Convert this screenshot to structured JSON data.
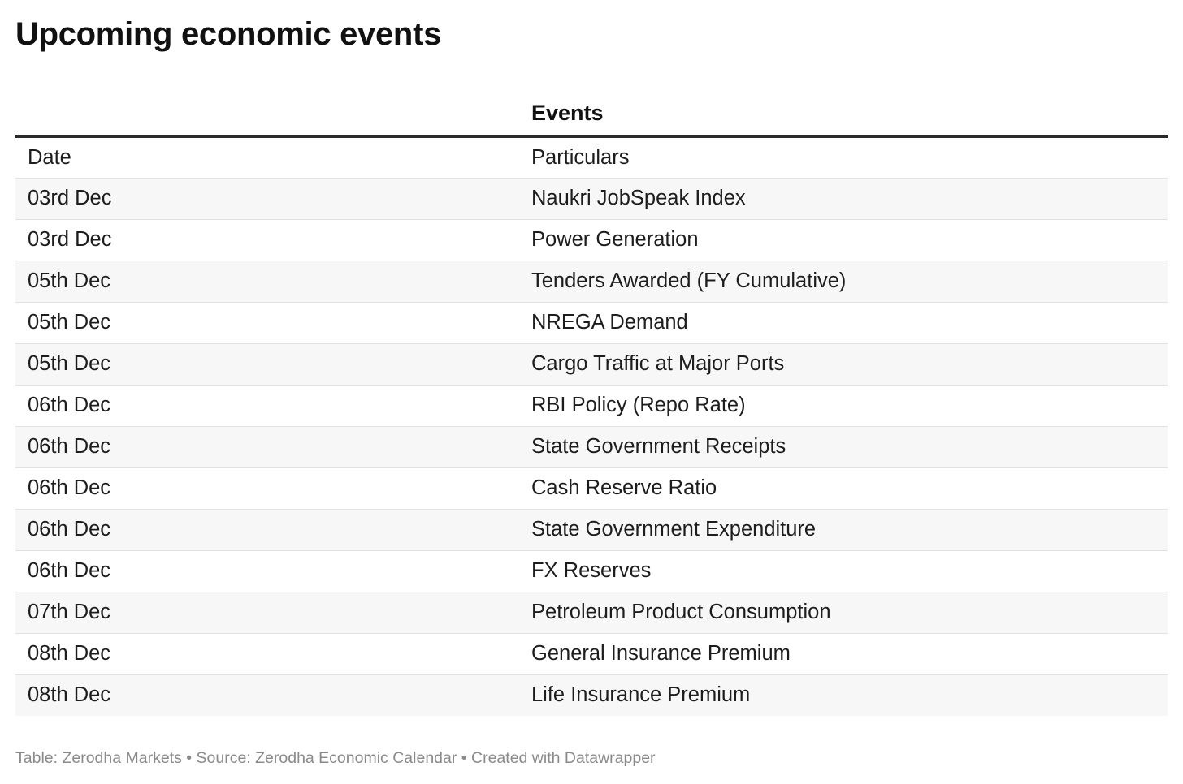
{
  "title": "Upcoming economic events",
  "footer": "Table: Zerodha Markets • Source: Zerodha Economic Calendar • Created with Datawrapper",
  "chart_data": {
    "type": "table",
    "title": "Upcoming economic events",
    "group_header": "Events",
    "columns": [
      "Date",
      "Particulars"
    ],
    "rows": [
      [
        "03rd Dec",
        "Naukri JobSpeak Index"
      ],
      [
        "03rd Dec",
        "Power Generation"
      ],
      [
        "05th Dec",
        "Tenders Awarded (FY Cumulative)"
      ],
      [
        "05th Dec",
        "NREGA Demand"
      ],
      [
        "05th Dec",
        "Cargo Traffic at Major Ports"
      ],
      [
        "06th Dec",
        "RBI Policy (Repo Rate)"
      ],
      [
        "06th Dec",
        "State Government Receipts"
      ],
      [
        "06th Dec",
        "Cash Reserve Ratio"
      ],
      [
        "06th Dec",
        "State Government Expenditure"
      ],
      [
        "06th Dec",
        "FX Reserves"
      ],
      [
        "07th Dec",
        "Petroleum Product Consumption"
      ],
      [
        "08th Dec",
        "General Insurance Premium"
      ],
      [
        "08th Dec",
        "Life Insurance Premium"
      ]
    ]
  }
}
